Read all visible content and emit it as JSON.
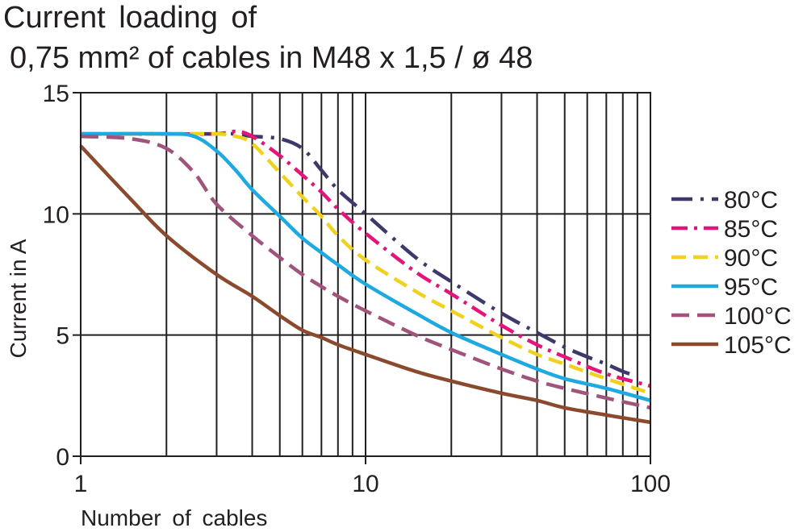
{
  "title_line1": "Current loading of",
  "title_line2": "0,75 mm² of cables in M48 x 1,5 / ø 48",
  "chart_data": {
    "type": "line",
    "xscale": "log",
    "xlim": [
      1,
      100
    ],
    "ylim": [
      0,
      15
    ],
    "xlabel": "Number of cables",
    "ylabel": "Current in A",
    "x_ticks": [
      1,
      10,
      100
    ],
    "x_tick_labels": [
      "1",
      "10",
      "100"
    ],
    "y_ticks": [
      0,
      5,
      10,
      15
    ],
    "y_tick_labels": [
      "0",
      "5",
      "10",
      "15"
    ],
    "grid": true,
    "legend_position": "right",
    "series": [
      {
        "name": "80°C",
        "color": "#3d3a6b",
        "dash": "long-dot",
        "x": [
          1,
          2,
          3,
          3.5,
          4,
          5,
          6,
          7,
          8,
          10,
          15,
          20,
          30,
          40,
          50,
          60,
          70,
          80,
          90
        ],
        "y": [
          13.3,
          13.3,
          13.3,
          13.3,
          13.2,
          13.1,
          12.7,
          11.8,
          11.0,
          10.0,
          8.2,
          7.2,
          5.9,
          5.1,
          4.5,
          4.1,
          3.8,
          3.5,
          3.3
        ]
      },
      {
        "name": "85°C",
        "color": "#e4147a",
        "dash": "dash-dot",
        "x": [
          1,
          2,
          3,
          3.5,
          4,
          5,
          6,
          7,
          8,
          10,
          15,
          20,
          30,
          40,
          50,
          70,
          100
        ],
        "y": [
          13.3,
          13.3,
          13.3,
          13.4,
          13.2,
          12.4,
          11.6,
          10.9,
          10.2,
          9.2,
          7.6,
          6.7,
          5.4,
          4.6,
          4.1,
          3.4,
          2.9
        ]
      },
      {
        "name": "90°C",
        "color": "#f0d21e",
        "dash": "dash",
        "x": [
          1,
          2,
          3,
          3.5,
          4,
          5,
          6,
          7,
          8,
          10,
          15,
          20,
          30,
          40,
          50,
          70,
          100
        ],
        "y": [
          13.3,
          13.3,
          13.3,
          13.2,
          12.9,
          11.7,
          10.7,
          9.9,
          9.1,
          8.1,
          6.8,
          6.0,
          4.9,
          4.2,
          3.8,
          3.2,
          2.6
        ]
      },
      {
        "name": "95°C",
        "color": "#1fa9e1",
        "dash": "solid",
        "x": [
          1,
          2,
          2.5,
          3,
          3.5,
          4,
          5,
          6,
          7,
          8,
          10,
          15,
          20,
          30,
          40,
          50,
          70,
          100
        ],
        "y": [
          13.3,
          13.3,
          13.2,
          12.6,
          11.8,
          11.0,
          9.9,
          9.0,
          8.4,
          7.9,
          7.1,
          5.9,
          5.1,
          4.2,
          3.6,
          3.2,
          2.8,
          2.3
        ]
      },
      {
        "name": "100°C",
        "color": "#a0547b",
        "dash": "long-dash",
        "x": [
          1,
          1.5,
          2,
          2.5,
          3,
          4,
          5,
          6,
          7,
          8,
          10,
          15,
          20,
          30,
          40,
          50,
          70,
          100
        ],
        "y": [
          13.2,
          13.1,
          12.7,
          11.7,
          10.4,
          9.1,
          8.2,
          7.5,
          7.0,
          6.6,
          6.0,
          5.0,
          4.4,
          3.6,
          3.1,
          2.8,
          2.4,
          2.0
        ]
      },
      {
        "name": "105°C",
        "color": "#8b4a2e",
        "dash": "solid",
        "x": [
          1,
          1.5,
          2,
          3,
          4,
          5,
          6,
          7,
          8,
          10,
          15,
          20,
          30,
          40,
          50,
          70,
          100
        ],
        "y": [
          12.8,
          10.6,
          9.1,
          7.5,
          6.6,
          5.8,
          5.2,
          4.9,
          4.6,
          4.2,
          3.5,
          3.1,
          2.6,
          2.3,
          2.0,
          1.7,
          1.4
        ]
      }
    ]
  }
}
